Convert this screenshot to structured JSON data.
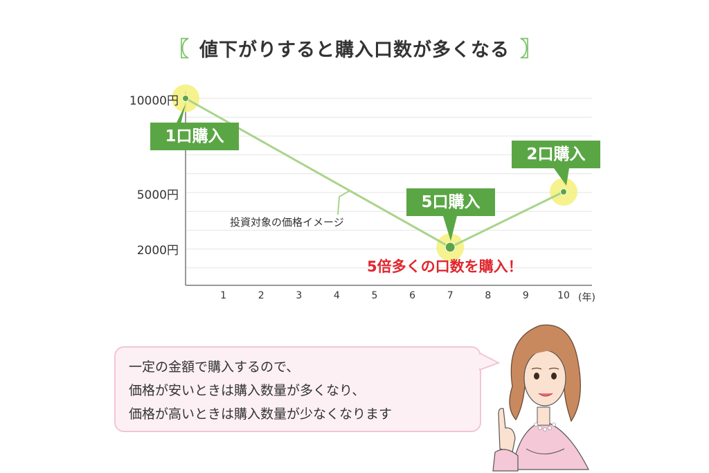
{
  "chart_data": {
    "type": "line",
    "title": "値下がりすると購入口数が多くなる",
    "title_brackets": [
      "〖",
      "〗"
    ],
    "x": [
      0,
      7,
      10
    ],
    "x_ticks": [
      "1",
      "2",
      "3",
      "4",
      "5",
      "6",
      "7",
      "8",
      "9",
      "10"
    ],
    "x_unit": "(年)",
    "y_ticks": [
      {
        "value": 10000,
        "label": "10000円"
      },
      {
        "value": 5000,
        "label": "5000円"
      },
      {
        "value": 2000,
        "label": "2000円"
      }
    ],
    "ylim": [
      0,
      10000
    ],
    "series": [
      {
        "values": [
          10000,
          2000,
          5000
        ]
      }
    ],
    "series_label": "投資対象の価格イメージ",
    "annotations": [
      {
        "label": "1口購入"
      },
      {
        "label": "5口購入"
      },
      {
        "label": "2口購入"
      }
    ],
    "emphasis": "5倍多くの口数を購入！",
    "colors": {
      "line": "#a9d48b",
      "callout": "#5aa645",
      "highlight": "#f5f07a",
      "point": "#5aa645",
      "emphasis": "#e0262d",
      "grid": "#e4e4e4"
    },
    "grid": true
  },
  "speech": {
    "lines": [
      "一定の金額で購入するので、",
      "価格が安いときは購入数量が多くなり、",
      "価格が高いときは購入数量が少なくなります"
    ]
  }
}
